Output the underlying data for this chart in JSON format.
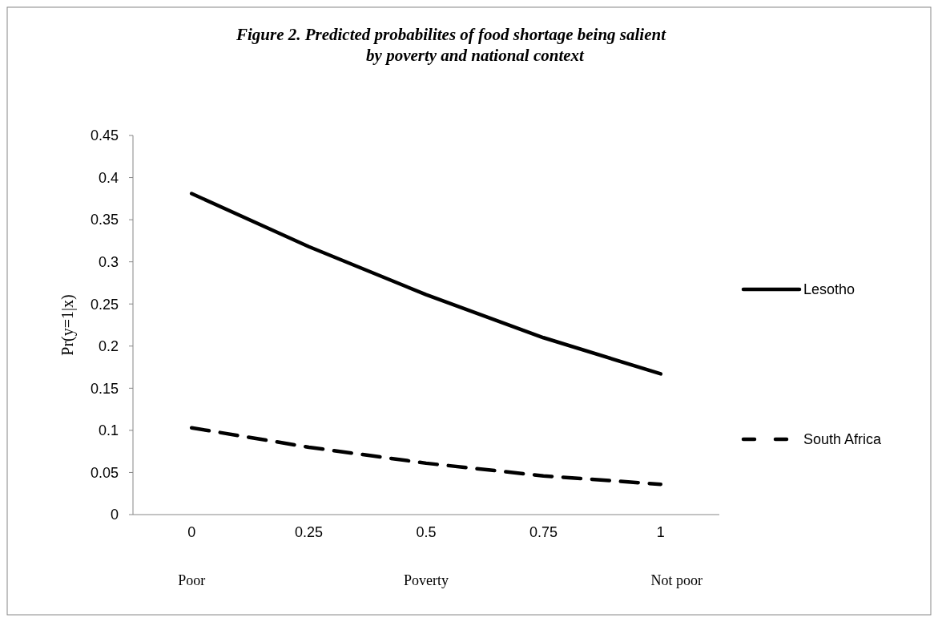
{
  "chart_data": {
    "type": "line",
    "title": "Figure 2. Predicted probabilites of food shortage being salient\nby poverty and national context",
    "categories": [
      "0",
      "0.25",
      "0.5",
      "0.75",
      "1"
    ],
    "xlabel": "Poverty",
    "ylabel": "Pr(y=1|x)",
    "annotations": [
      "Poor",
      "Not poor"
    ],
    "series": [
      {
        "name": "Lesotho",
        "color": "#000000",
        "line_style": "solid",
        "values": [
          0.381,
          0.318,
          0.261,
          0.21,
          0.167
        ]
      },
      {
        "name": "South Africa",
        "color": "#000000",
        "line_style": "dashed",
        "values": [
          0.103,
          0.08,
          0.061,
          0.046,
          0.036
        ]
      }
    ],
    "ylim": [
      0,
      0.45
    ],
    "yticks": [
      0,
      0.05,
      0.1,
      0.15,
      0.2,
      0.25,
      0.3,
      0.35,
      0.4,
      0.45
    ],
    "grid": false,
    "legend": "right",
    "marker": "none"
  }
}
